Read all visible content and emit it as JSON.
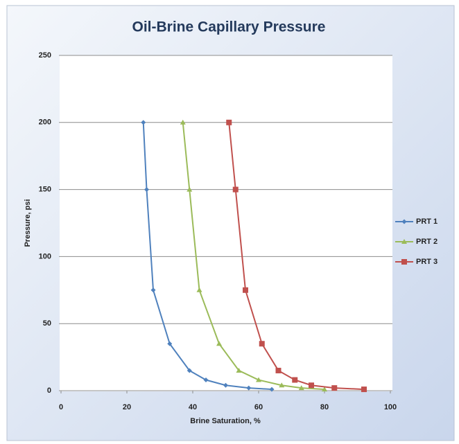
{
  "chart_data": {
    "type": "line",
    "title": "Oil-Brine Capillary Pressure",
    "x_label": "Brine Saturation, %",
    "y_label": "Pressure, psi",
    "xlim": [
      0,
      100
    ],
    "xticks": [
      0,
      20,
      40,
      60,
      80,
      100
    ],
    "ylim": [
      0,
      250
    ],
    "yticks": [
      0,
      50,
      100,
      150,
      200,
      250
    ],
    "grid": true,
    "legend": "right",
    "series": [
      {
        "name": "PRT 1",
        "color": "#4f81bd",
        "marker": "diamond",
        "x": [
          25,
          26,
          28,
          33,
          39,
          44,
          50,
          57,
          64
        ],
        "values": [
          200,
          150,
          75,
          35,
          15,
          8,
          4,
          2,
          1
        ]
      },
      {
        "name": "PRT 2",
        "color": "#9bbb59",
        "marker": "triangle",
        "x": [
          37,
          39,
          42,
          48,
          54,
          60,
          67,
          73,
          80
        ],
        "values": [
          200,
          150,
          75,
          35,
          15,
          8,
          4,
          2,
          1
        ]
      },
      {
        "name": "PRT 3",
        "color": "#c0504d",
        "marker": "square",
        "x": [
          51,
          53,
          56,
          61,
          66,
          71,
          76,
          83,
          92
        ],
        "values": [
          200,
          150,
          75,
          35,
          15,
          8,
          4,
          2,
          1
        ]
      }
    ]
  }
}
